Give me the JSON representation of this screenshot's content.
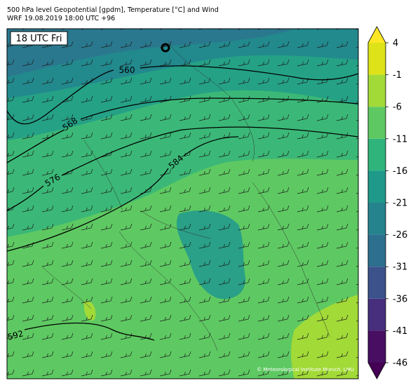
{
  "header": {
    "title": "500 hPa level Geopotential [gpdm], Temperature [°C] and Wind",
    "subtitle": "WRF 19.08.2019 18:00 UTC +96"
  },
  "map": {
    "time_label": "18 UTC Fri",
    "contour_labels": [
      560,
      568,
      576,
      584,
      592
    ],
    "credit": "© Meteorological Institute Munich, LMU"
  },
  "colorbar": {
    "ticks": [
      4,
      -1,
      -6,
      -11,
      -16,
      -21,
      -26,
      -31,
      -36,
      -41,
      -46
    ],
    "colors": [
      "#440154",
      "#470e61",
      "#472f7d",
      "#3b528b",
      "#2d6f8e",
      "#25838e",
      "#1f998a",
      "#2fb47c",
      "#5ec962",
      "#a2da37",
      "#dde318",
      "#fde725"
    ]
  }
}
